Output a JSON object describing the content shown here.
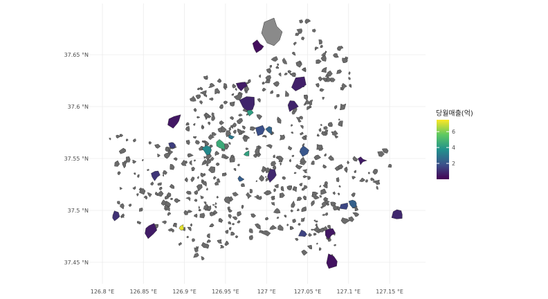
{
  "chart_data": {
    "type": "choropleth-map",
    "legend": {
      "title": "당월매출(억)",
      "ticks": [
        "2",
        "4",
        "6"
      ],
      "tick_values": [
        2,
        4,
        6
      ],
      "range": [
        0,
        7.5
      ],
      "palette": "viridis",
      "position": "right"
    },
    "x_axis": {
      "ticks": [
        "126.8 °E",
        "126.85 °E",
        "126.9 °E",
        "126.95 °E",
        "127 °E",
        "127.05 °E",
        "127.1 °E",
        "127.15 °E"
      ],
      "tick_values": [
        126.8,
        126.85,
        126.9,
        126.95,
        127.0,
        127.05,
        127.1,
        127.15
      ]
    },
    "y_axis": {
      "ticks": [
        "37.45 °N",
        "37.5 °N",
        "37.55 °N",
        "37.6 °N",
        "37.65 °N"
      ],
      "tick_values": [
        37.45,
        37.5,
        37.55,
        37.6,
        37.65
      ]
    },
    "grid": true,
    "na_fill": "#6b6b6b",
    "large_na_fill": "#8a8a8a",
    "region_values": [
      {
        "lon": 126.99,
        "lat": 37.658,
        "value": 0.3
      },
      {
        "lon": 127.078,
        "lat": 37.451,
        "value": 0.4
      },
      {
        "lon": 127.077,
        "lat": 37.478,
        "value": 0.5
      },
      {
        "lon": 126.897,
        "lat": 37.484,
        "value": 7.2
      },
      {
        "lon": 126.944,
        "lat": 37.564,
        "value": 4.6
      },
      {
        "lon": 126.98,
        "lat": 37.594,
        "value": 4.2
      },
      {
        "lon": 126.928,
        "lat": 37.558,
        "value": 3.5
      },
      {
        "lon": 126.956,
        "lat": 37.571,
        "value": 3.0
      },
      {
        "lon": 126.976,
        "lat": 37.555,
        "value": 4.3
      },
      {
        "lon": 126.968,
        "lat": 37.53,
        "value": 2.2
      },
      {
        "lon": 127.046,
        "lat": 37.558,
        "value": 2.0
      },
      {
        "lon": 126.991,
        "lat": 37.578,
        "value": 1.8
      },
      {
        "lon": 127.004,
        "lat": 37.577,
        "value": 2.4
      },
      {
        "lon": 127.095,
        "lat": 37.504,
        "value": 1.6
      },
      {
        "lon": 127.106,
        "lat": 37.507,
        "value": 2.3
      },
      {
        "lon": 127.044,
        "lat": 37.477,
        "value": 1.5
      },
      {
        "lon": 126.865,
        "lat": 37.534,
        "value": 1.2
      },
      {
        "lon": 126.885,
        "lat": 37.563,
        "value": 1.4
      },
      {
        "lon": 126.978,
        "lat": 37.602,
        "value": 0.8
      },
      {
        "lon": 126.97,
        "lat": 37.62,
        "value": 0.6
      },
      {
        "lon": 127.038,
        "lat": 37.621,
        "value": 0.7
      },
      {
        "lon": 126.888,
        "lat": 37.586,
        "value": 0.5
      },
      {
        "lon": 127.16,
        "lat": 37.496,
        "value": 0.9
      },
      {
        "lon": 126.816,
        "lat": 37.494,
        "value": 1.1
      },
      {
        "lon": 127.116,
        "lat": 37.548,
        "value": 0.6
      },
      {
        "lon": 127.006,
        "lat": 37.534,
        "value": 0.9
      },
      {
        "lon": 126.858,
        "lat": 37.481,
        "value": 0.6
      },
      {
        "lon": 127.03,
        "lat": 37.6,
        "value": 0.8
      }
    ]
  }
}
